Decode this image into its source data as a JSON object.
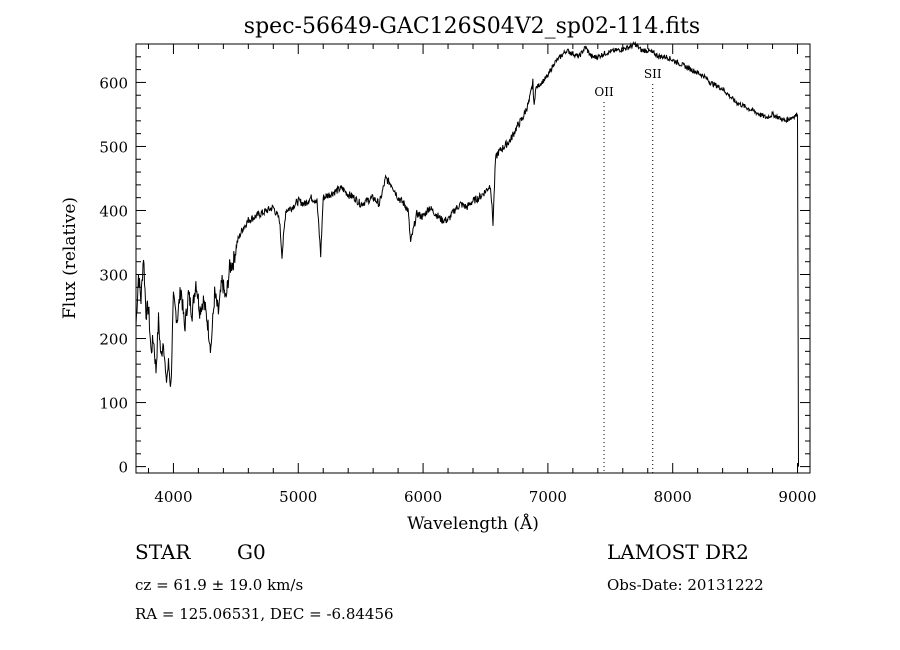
{
  "chart_data": {
    "type": "line",
    "title": "spec-56649-GAC126S04V2_sp02-114.fits",
    "xlabel": "Wavelength (Å)",
    "ylabel": "Flux (relative)",
    "xlim": [
      3700,
      9100
    ],
    "ylim": [
      -10,
      660
    ],
    "xticks": [
      4000,
      5000,
      6000,
      7000,
      8000,
      9000
    ],
    "yticks": [
      0,
      100,
      200,
      300,
      400,
      500,
      600
    ],
    "grid": false,
    "series": [
      {
        "x": [
          3700,
          3720,
          3740,
          3760,
          3780,
          3800,
          3820,
          3840,
          3860,
          3880,
          3900,
          3920,
          3940,
          3960,
          3980,
          4000,
          4030,
          4060,
          4090,
          4120,
          4150,
          4180,
          4210,
          4240,
          4270,
          4300,
          4330,
          4360,
          4390,
          4420,
          4450,
          4480,
          4510,
          4550,
          4600,
          4650,
          4700,
          4750,
          4800,
          4850,
          4870,
          4900,
          4950,
          5000,
          5050,
          5100,
          5150,
          5180,
          5200,
          5250,
          5300,
          5350,
          5400,
          5450,
          5500,
          5550,
          5600,
          5650,
          5700,
          5750,
          5800,
          5850,
          5880,
          5900,
          5950,
          6000,
          6050,
          6100,
          6150,
          6200,
          6250,
          6300,
          6350,
          6400,
          6450,
          6500,
          6540,
          6560,
          6580,
          6600,
          6650,
          6700,
          6750,
          6800,
          6850,
          6880,
          6890,
          6900,
          6950,
          7000,
          7050,
          7100,
          7150,
          7200,
          7250,
          7300,
          7350,
          7400,
          7450,
          7500,
          7550,
          7600,
          7650,
          7700,
          7750,
          7800,
          7850,
          7900,
          7950,
          8000,
          8050,
          8100,
          8150,
          8200,
          8250,
          8300,
          8350,
          8400,
          8450,
          8500,
          8550,
          8600,
          8650,
          8700,
          8750,
          8800,
          8850,
          8900,
          8950,
          9000
        ],
        "values": [
          220,
          300,
          260,
          330,
          240,
          250,
          180,
          200,
          150,
          230,
          170,
          200,
          130,
          160,
          125,
          260,
          230,
          280,
          215,
          270,
          240,
          290,
          245,
          260,
          230,
          185,
          270,
          240,
          290,
          260,
          310,
          320,
          350,
          370,
          385,
          390,
          395,
          400,
          405,
          385,
          330,
          400,
          405,
          415,
          410,
          420,
          415,
          330,
          420,
          425,
          430,
          435,
          425,
          420,
          410,
          415,
          420,
          410,
          450,
          440,
          420,
          410,
          400,
          350,
          395,
          390,
          405,
          395,
          385,
          385,
          400,
          410,
          405,
          415,
          420,
          430,
          440,
          380,
          480,
          490,
          500,
          510,
          530,
          545,
          570,
          600,
          560,
          590,
          600,
          610,
          630,
          640,
          650,
          645,
          640,
          655,
          640,
          640,
          645,
          648,
          650,
          652,
          655,
          660,
          650,
          650,
          645,
          640,
          640,
          635,
          630,
          625,
          620,
          615,
          610,
          600,
          595,
          590,
          580,
          570,
          565,
          560,
          555,
          550,
          545,
          550,
          545,
          540,
          545,
          550
        ]
      }
    ],
    "annotations": [
      {
        "label": "OII",
        "x": 7450
      },
      {
        "label": "SII",
        "x": 7840
      }
    ]
  },
  "footer": {
    "class_label": "STAR",
    "subclass_label": "G0",
    "cz_text": "cz = 61.9 ± 19.0 km/s",
    "survey_label": "LAMOST DR2",
    "obs_date_text": "Obs-Date: 20131222",
    "coords_text": "RA = 125.06531, DEC =  -6.84456"
  }
}
